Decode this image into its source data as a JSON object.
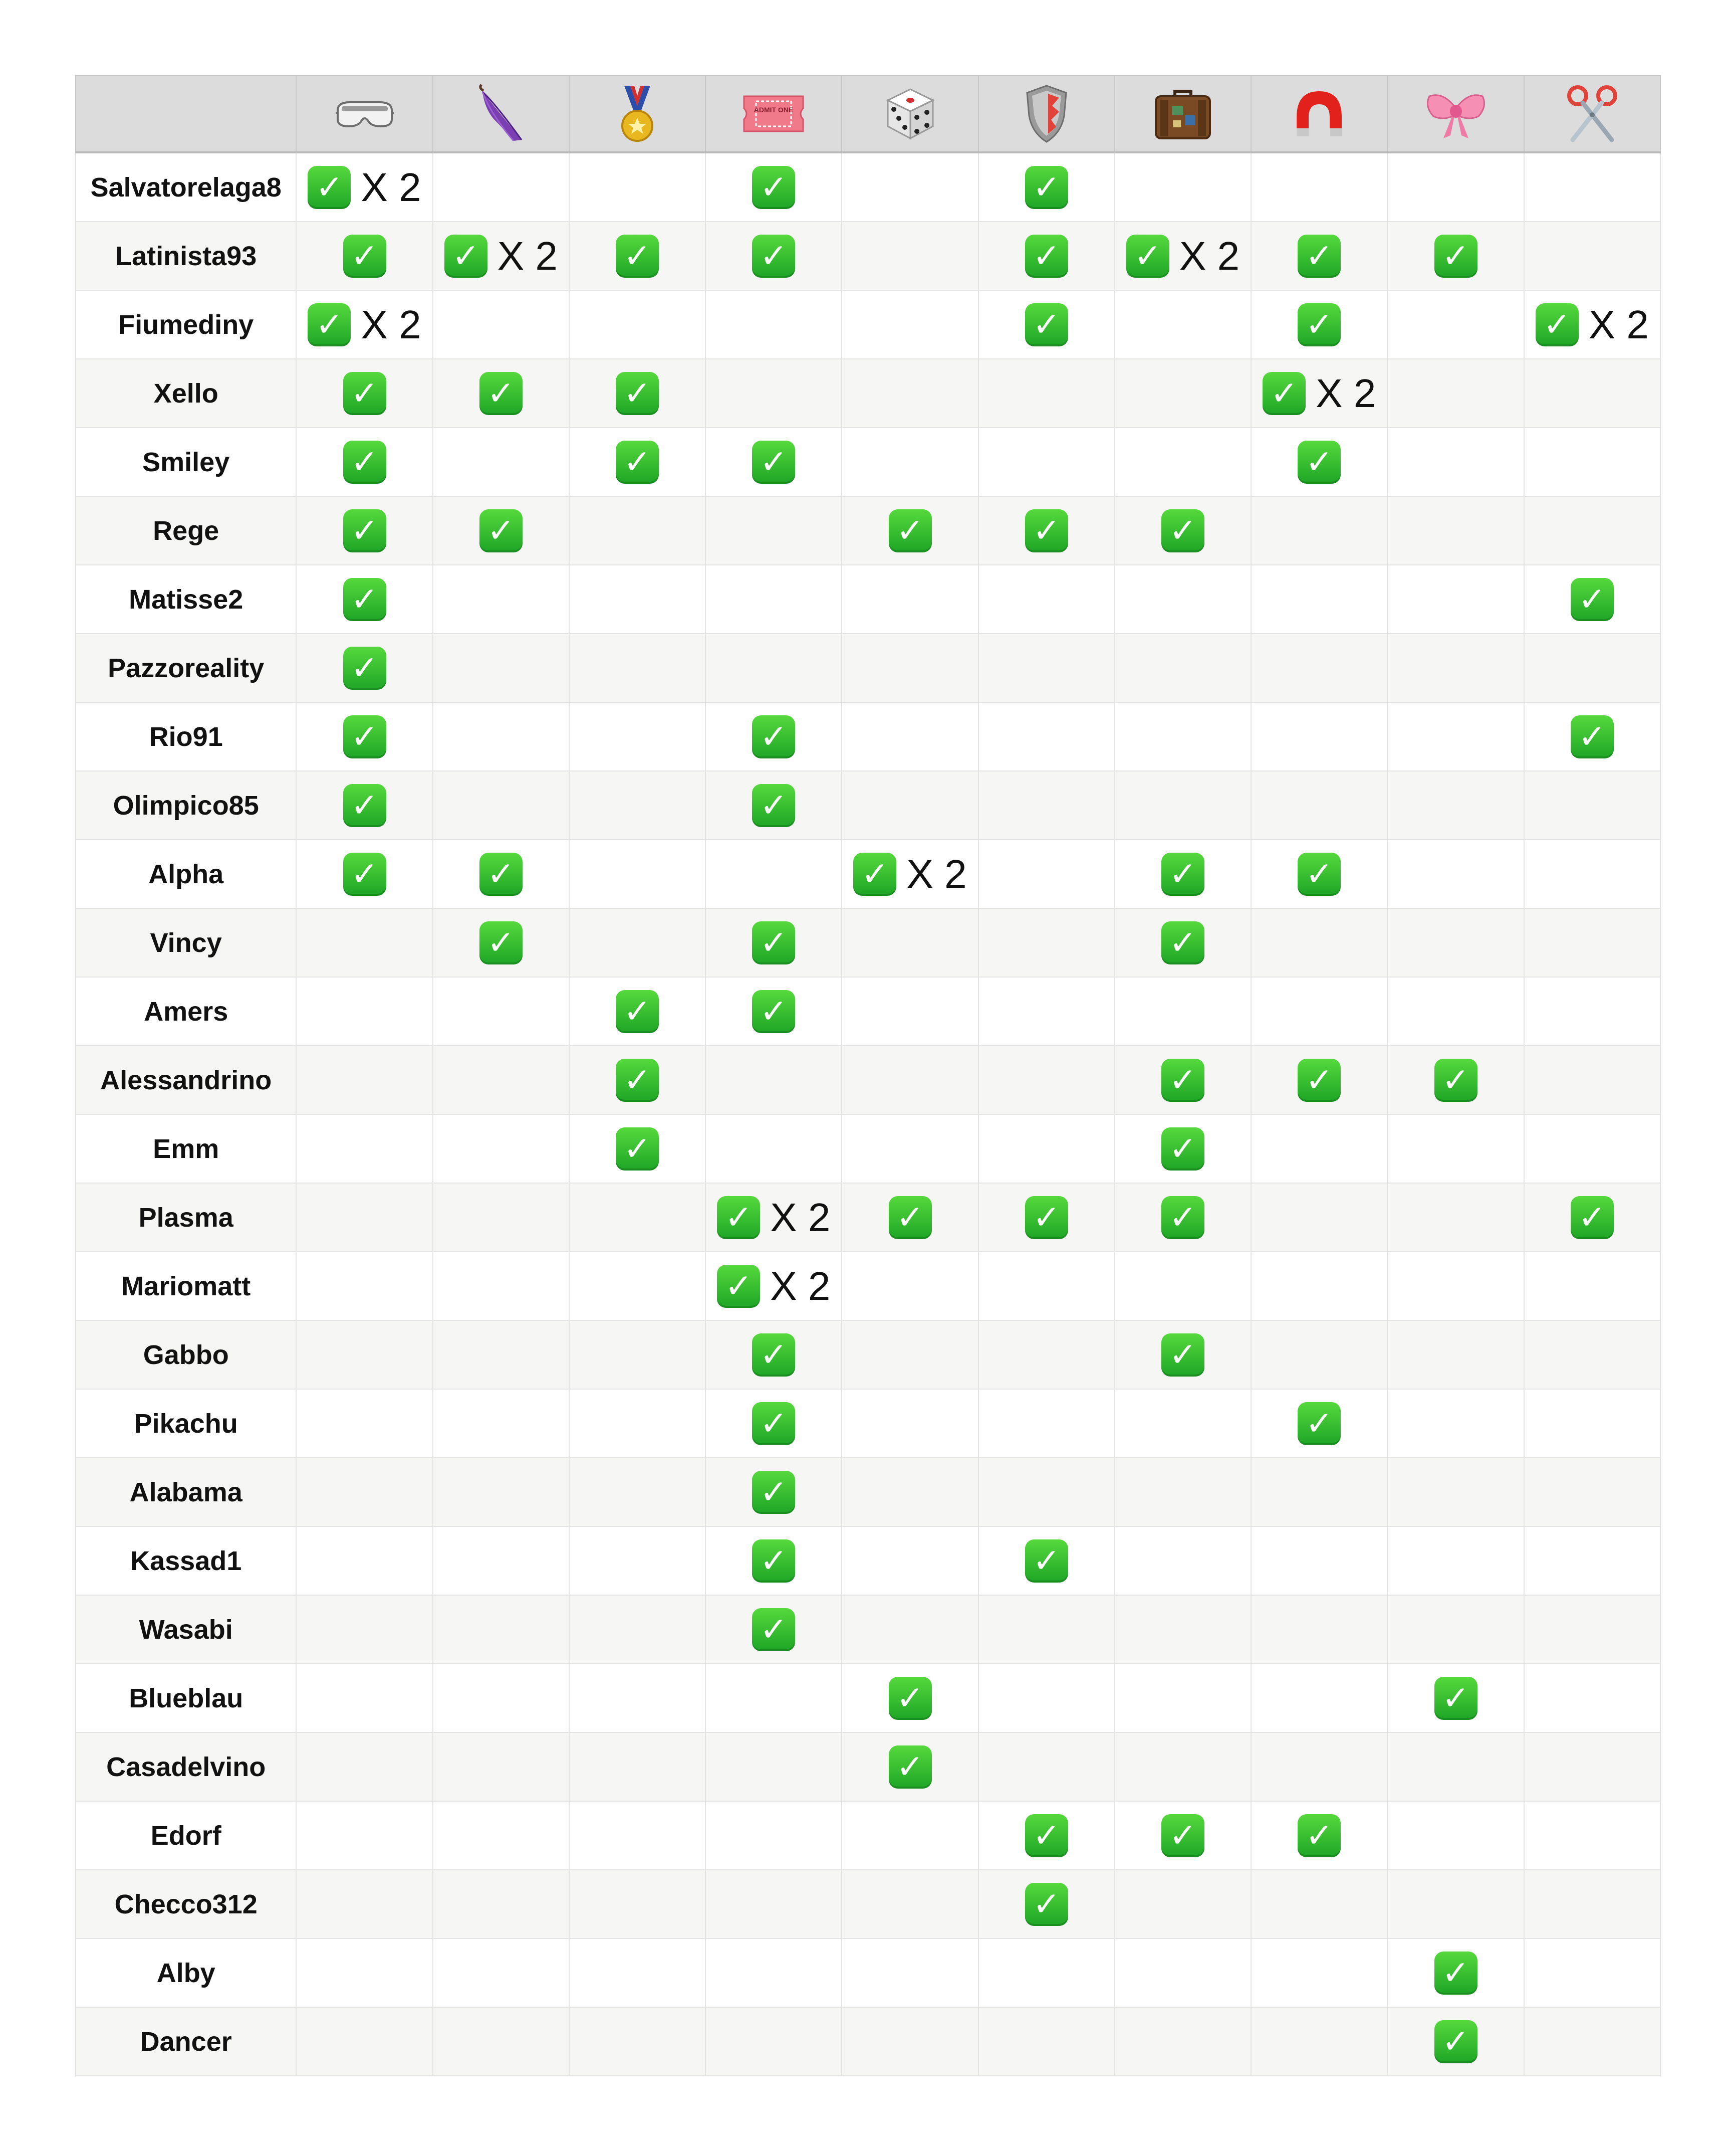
{
  "columns": [
    {
      "icon": "goggles-icon"
    },
    {
      "icon": "umbrella-icon"
    },
    {
      "icon": "medal-icon"
    },
    {
      "icon": "admit-ticket-icon",
      "text": "ADMIT ONE"
    },
    {
      "icon": "dice-icon"
    },
    {
      "icon": "shield-icon"
    },
    {
      "icon": "suitcase-icon"
    },
    {
      "icon": "magnet-icon"
    },
    {
      "icon": "ribbon-bow-icon"
    },
    {
      "icon": "scissors-icon"
    }
  ],
  "check_symbol": "✓",
  "multiplier_label": "X 2",
  "colors": {
    "check_green": "#2fbf2a",
    "header_bg": "#dcdcdc",
    "row_alt": "#f6f6f4"
  },
  "rows": [
    {
      "name": "Salvatorelaga8",
      "cells": [
        2,
        0,
        0,
        1,
        0,
        1,
        0,
        0,
        0,
        0
      ]
    },
    {
      "name": "Latinista93",
      "cells": [
        1,
        2,
        1,
        1,
        0,
        1,
        2,
        1,
        1,
        0
      ]
    },
    {
      "name": "Fiumediny",
      "cells": [
        2,
        0,
        0,
        0,
        0,
        1,
        0,
        1,
        0,
        2
      ]
    },
    {
      "name": "Xello",
      "cells": [
        1,
        1,
        1,
        0,
        0,
        0,
        0,
        2,
        0,
        0
      ]
    },
    {
      "name": "Smiley",
      "cells": [
        1,
        0,
        1,
        1,
        0,
        0,
        0,
        1,
        0,
        0
      ]
    },
    {
      "name": "Rege",
      "cells": [
        1,
        1,
        0,
        0,
        1,
        1,
        1,
        0,
        0,
        0
      ]
    },
    {
      "name": "Matisse2",
      "cells": [
        1,
        0,
        0,
        0,
        0,
        0,
        0,
        0,
        0,
        1
      ]
    },
    {
      "name": "Pazzoreality",
      "cells": [
        1,
        0,
        0,
        0,
        0,
        0,
        0,
        0,
        0,
        0
      ]
    },
    {
      "name": "Rio91",
      "cells": [
        1,
        0,
        0,
        1,
        0,
        0,
        0,
        0,
        0,
        1
      ]
    },
    {
      "name": "Olimpico85",
      "cells": [
        1,
        0,
        0,
        1,
        0,
        0,
        0,
        0,
        0,
        0
      ]
    },
    {
      "name": "Alpha",
      "cells": [
        1,
        1,
        0,
        0,
        2,
        0,
        1,
        1,
        0,
        0
      ]
    },
    {
      "name": "Vincy",
      "cells": [
        0,
        1,
        0,
        1,
        0,
        0,
        1,
        0,
        0,
        0
      ]
    },
    {
      "name": "Amers",
      "cells": [
        0,
        0,
        1,
        1,
        0,
        0,
        0,
        0,
        0,
        0
      ]
    },
    {
      "name": "Alessandrino",
      "cells": [
        0,
        0,
        1,
        0,
        0,
        0,
        1,
        1,
        1,
        0
      ]
    },
    {
      "name": "Emm",
      "cells": [
        0,
        0,
        1,
        0,
        0,
        0,
        1,
        0,
        0,
        0
      ]
    },
    {
      "name": "Plasma",
      "cells": [
        0,
        0,
        0,
        2,
        1,
        1,
        1,
        0,
        0,
        1
      ]
    },
    {
      "name": "Mariomatt",
      "cells": [
        0,
        0,
        0,
        2,
        0,
        0,
        0,
        0,
        0,
        0
      ]
    },
    {
      "name": "Gabbo",
      "cells": [
        0,
        0,
        0,
        1,
        0,
        0,
        1,
        0,
        0,
        0
      ]
    },
    {
      "name": "Pikachu",
      "cells": [
        0,
        0,
        0,
        1,
        0,
        0,
        0,
        1,
        0,
        0
      ]
    },
    {
      "name": "Alabama",
      "cells": [
        0,
        0,
        0,
        1,
        0,
        0,
        0,
        0,
        0,
        0
      ]
    },
    {
      "name": "Kassad1",
      "cells": [
        0,
        0,
        0,
        1,
        0,
        1,
        0,
        0,
        0,
        0
      ]
    },
    {
      "name": "Wasabi",
      "cells": [
        0,
        0,
        0,
        1,
        0,
        0,
        0,
        0,
        0,
        0
      ]
    },
    {
      "name": "Blueblau",
      "cells": [
        0,
        0,
        0,
        0,
        1,
        0,
        0,
        0,
        1,
        0
      ]
    },
    {
      "name": "Casadelvino",
      "cells": [
        0,
        0,
        0,
        0,
        1,
        0,
        0,
        0,
        0,
        0
      ]
    },
    {
      "name": "Edorf",
      "cells": [
        0,
        0,
        0,
        0,
        0,
        1,
        1,
        1,
        0,
        0
      ]
    },
    {
      "name": "Checco312",
      "cells": [
        0,
        0,
        0,
        0,
        0,
        1,
        0,
        0,
        0,
        0
      ]
    },
    {
      "name": "Alby",
      "cells": [
        0,
        0,
        0,
        0,
        0,
        0,
        0,
        0,
        1,
        0
      ]
    },
    {
      "name": "Dancer",
      "cells": [
        0,
        0,
        0,
        0,
        0,
        0,
        0,
        0,
        1,
        0
      ]
    }
  ]
}
